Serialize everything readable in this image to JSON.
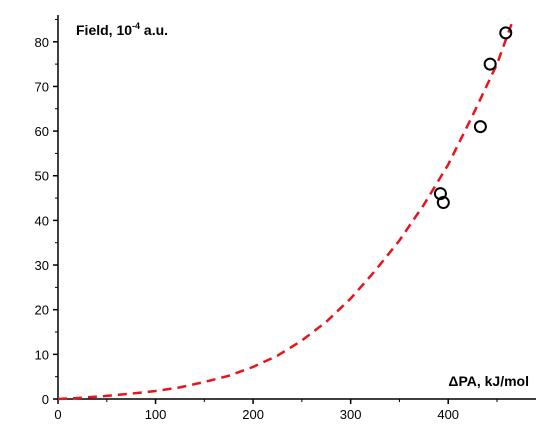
{
  "chart_data": {
    "type": "scatter",
    "title": "",
    "ylabel": "Field, 10",
    "ylabel_exponent": "-4",
    "ylabel_unit": " a.u.",
    "xlabel": "ΔPA, kJ/mol",
    "xlim": [
      0,
      490
    ],
    "ylim": [
      0,
      86
    ],
    "x_ticks": [
      0,
      100,
      200,
      300,
      400
    ],
    "y_ticks": [
      0,
      10,
      20,
      30,
      40,
      50,
      60,
      70,
      80
    ],
    "grid": false,
    "series": [
      {
        "type": "scatter",
        "marker": "open-circle",
        "color": "#000000",
        "x": [
          392,
          395,
          433,
          443,
          459
        ],
        "y": [
          46,
          44,
          61,
          75,
          82
        ]
      },
      {
        "type": "line",
        "style": "dashed",
        "color": "#e8141b",
        "x": [
          0,
          25,
          50,
          75,
          100,
          125,
          150,
          175,
          200,
          225,
          250,
          275,
          300,
          325,
          350,
          375,
          400,
          425,
          450,
          465
        ],
        "y": [
          0,
          0.3,
          0.7,
          1.2,
          1.8,
          2.6,
          3.8,
          5.2,
          7.2,
          9.7,
          13.1,
          17.3,
          22.5,
          28.7,
          35.5,
          43.5,
          52.5,
          63.5,
          75,
          84
        ]
      }
    ]
  }
}
